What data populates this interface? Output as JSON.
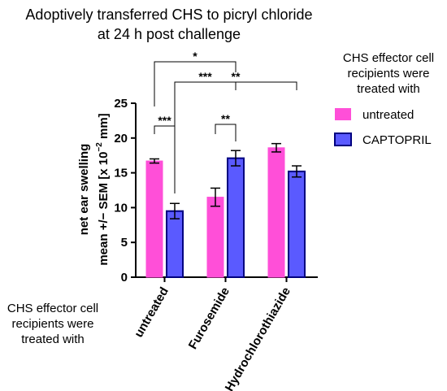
{
  "chart_data": {
    "type": "bar",
    "title_lines": [
      "Adoptively transferred CHS to picryl chloride",
      "at 24 h post challenge"
    ],
    "ylabel_lines": [
      "net ear swelling",
      "mean +/− SEM [x 10",
      "−2",
      " mm]"
    ],
    "ylim": [
      0,
      25
    ],
    "yticks": [
      0,
      5,
      10,
      15,
      20,
      25
    ],
    "categories": [
      "untreated",
      "Furosemide",
      "Hydrochlorothiazide"
    ],
    "x_side_label": [
      "CHS effector cell",
      "recipients were",
      "treated with"
    ],
    "legend": {
      "title": [
        "CHS effector cell",
        "recipients were",
        "treated with"
      ],
      "placement": "right"
    },
    "series": [
      {
        "name": "untreated",
        "color": "#ff4fd8",
        "border": "#ff4fd8",
        "values": [
          16.7,
          11.5,
          18.6
        ],
        "errors": [
          0.3,
          1.3,
          0.6
        ]
      },
      {
        "name": "CAPTOPRIL",
        "color": "#5a5aff",
        "border": "#000080",
        "values": [
          9.5,
          17.1,
          15.2
        ],
        "errors": [
          1.1,
          1.1,
          0.8
        ]
      }
    ],
    "significance": [
      {
        "label": "***",
        "from": [
          0,
          0
        ],
        "to": [
          0,
          1
        ]
      },
      {
        "label": "**",
        "from": [
          1,
          0
        ],
        "to": [
          1,
          1
        ]
      },
      {
        "label": "*",
        "from": [
          0,
          0
        ],
        "to": [
          1,
          1
        ]
      },
      {
        "label": "***",
        "from": [
          0,
          1
        ],
        "to": [
          1,
          1
        ]
      },
      {
        "label": "**",
        "from": [
          0,
          1
        ],
        "to": [
          2,
          1
        ]
      }
    ]
  }
}
